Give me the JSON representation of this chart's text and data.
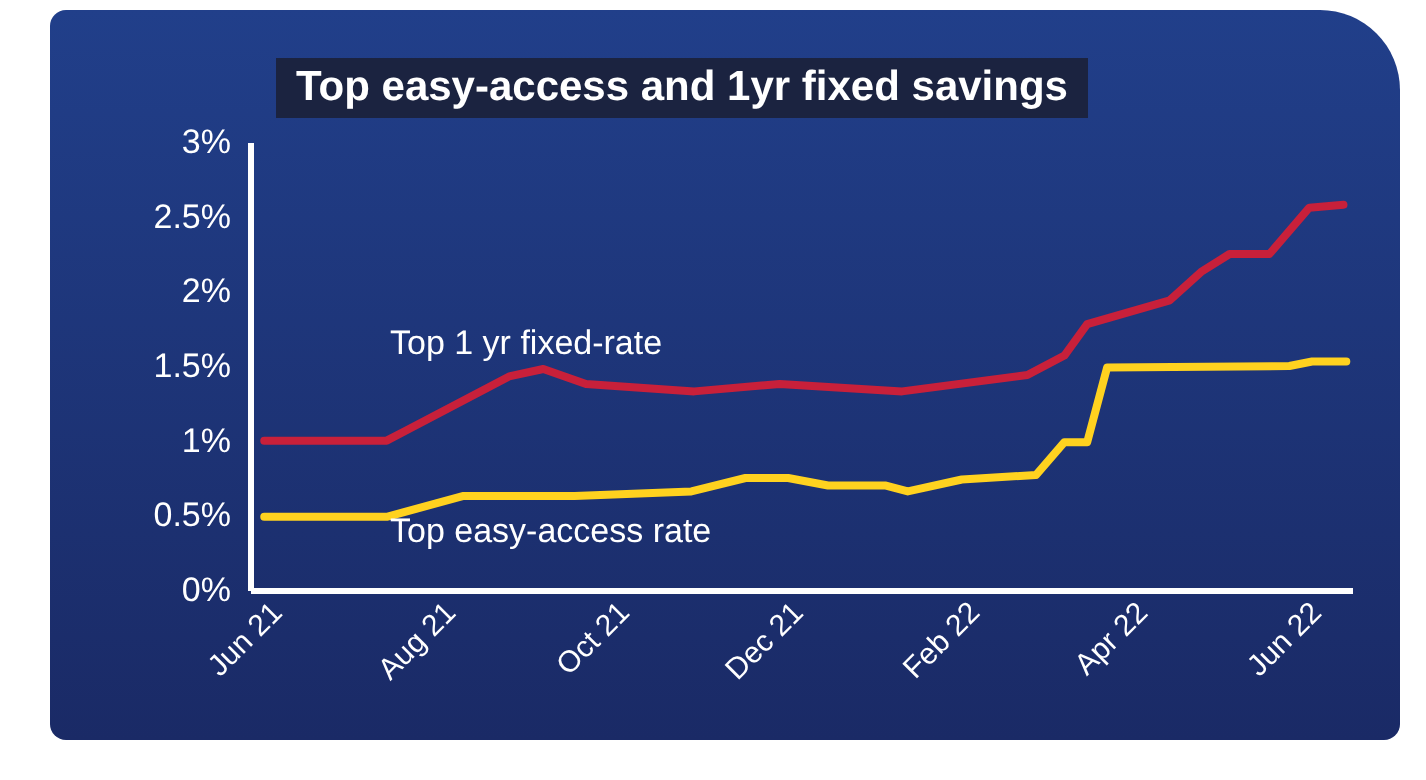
{
  "chart_data": {
    "type": "line",
    "title": "Top easy-access and 1yr fixed savings",
    "xlim": [
      "2021-05-23",
      "2022-06-14"
    ],
    "xticks": [
      {
        "value": "2021-06",
        "label": "Jun 21"
      },
      {
        "value": "2021-08",
        "label": "Aug 21"
      },
      {
        "value": "2021-10",
        "label": "Oct 21"
      },
      {
        "value": "2021-12",
        "label": "Dec 21"
      },
      {
        "value": "2022-02",
        "label": "Feb 22"
      },
      {
        "value": "2022-04",
        "label": "Apr 22"
      },
      {
        "value": "2022-06",
        "label": "Jun 22"
      }
    ],
    "ylim": [
      0,
      3
    ],
    "yticks": [
      {
        "value": 0,
        "label": "0%"
      },
      {
        "value": 0.5,
        "label": "0.5%"
      },
      {
        "value": 1,
        "label": "1%"
      },
      {
        "value": 1.5,
        "label": "1.5%"
      },
      {
        "value": 2,
        "label": "2%"
      },
      {
        "value": 2.5,
        "label": "2.5%"
      },
      {
        "value": 3,
        "label": "3%"
      }
    ],
    "series": [
      {
        "name": "Top 1 yr fixed-rate",
        "color": "#c8203a",
        "x": [
          "2021-05-28",
          "2021-07-10",
          "2021-07-17",
          "2021-08-22",
          "2021-09-03",
          "2021-09-18",
          "2021-10-26",
          "2021-11-25",
          "2022-01-07",
          "2022-02-20",
          "2022-03-05",
          "2022-03-13",
          "2022-04-11",
          "2022-04-22",
          "2022-05-02",
          "2022-05-16",
          "2022-05-30",
          "2022-06-11"
        ],
        "values": [
          1.0,
          1.0,
          1.07,
          1.43,
          1.48,
          1.38,
          1.33,
          1.38,
          1.33,
          1.44,
          1.57,
          1.78,
          1.94,
          2.13,
          2.25,
          2.25,
          2.56,
          2.58
        ]
      },
      {
        "name": "Top easy-access rate",
        "color": "#ffd21f",
        "x": [
          "2021-05-28",
          "2021-07-10",
          "2021-08-06",
          "2021-09-14",
          "2021-10-25",
          "2021-11-13",
          "2021-11-28",
          "2021-12-12",
          "2022-01-01",
          "2022-01-09",
          "2022-01-28",
          "2022-02-23",
          "2022-03-05",
          "2022-03-13",
          "2022-03-20",
          "2022-05-23",
          "2022-05-31",
          "2022-06-12"
        ],
        "values": [
          0.49,
          0.49,
          0.63,
          0.63,
          0.66,
          0.75,
          0.75,
          0.7,
          0.7,
          0.66,
          0.74,
          0.77,
          0.99,
          0.99,
          1.49,
          1.5,
          1.53,
          1.53
        ]
      }
    ]
  }
}
